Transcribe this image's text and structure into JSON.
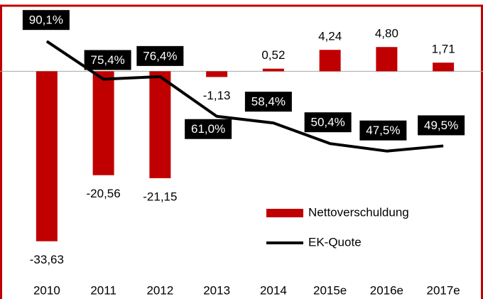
{
  "chart_data": {
    "type": "bar",
    "categories": [
      "2010",
      "2011",
      "2012",
      "2013",
      "2014",
      "2015e",
      "2016e",
      "2017e"
    ],
    "series": [
      {
        "name": "Nettoverschuldung",
        "type": "bar",
        "color": "#c00000",
        "values": [
          -33.63,
          -20.56,
          -21.15,
          -1.13,
          0.52,
          4.24,
          4.8,
          1.71
        ],
        "value_labels": [
          "-33,63",
          "-20,56",
          "-21,15",
          "-1,13",
          "0,52",
          "4,24",
          "4,80",
          "1,71"
        ]
      },
      {
        "name": "EK-Quote",
        "type": "line",
        "axis": "y2",
        "color": "#000000",
        "values": [
          90.1,
          75.4,
          76.4,
          61.0,
          58.4,
          50.4,
          47.5,
          49.5
        ],
        "value_labels": [
          "90,1%",
          "75,4%",
          "76,4%",
          "61,0%",
          "58,4%",
          "50,4%",
          "47,5%",
          "49,5%"
        ]
      }
    ],
    "ylim": [
      -40,
      12
    ],
    "y2lim": [
      0,
      102
    ],
    "legend": "lower right"
  }
}
